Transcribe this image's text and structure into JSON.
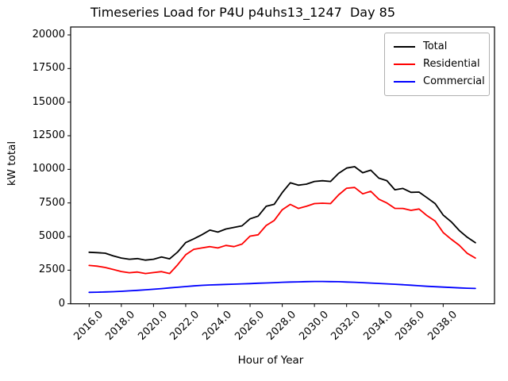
{
  "chart_data": {
    "type": "line",
    "title": "Timeseries Load for P4U p4uhs13_1247  Day 85",
    "xlabel": "Hour of Year",
    "ylabel": "kW total",
    "xlim": [
      2014.85,
      2041.19
    ],
    "ylim": [
      0,
      20590
    ],
    "grid": false,
    "legend_position": "upper right",
    "xticks": {
      "values": [
        2016,
        2018,
        2020,
        2022,
        2024,
        2026,
        2028,
        2030,
        2032,
        2034,
        2036,
        2038
      ],
      "labels": [
        "2016.0",
        "2018.0",
        "2020.0",
        "2022.0",
        "2024.0",
        "2026.0",
        "2028.0",
        "2030.0",
        "2032.0",
        "2034.0",
        "2036.0",
        "2038.0"
      ]
    },
    "yticks": {
      "values": [
        0,
        2500,
        5000,
        7500,
        10000,
        12500,
        15000,
        17500,
        20000
      ],
      "labels": [
        "0",
        "2500",
        "5000",
        "7500",
        "10000",
        "12500",
        "15000",
        "17500",
        "20000"
      ]
    },
    "x": [
      2016.0,
      2016.5,
      2017.0,
      2017.5,
      2018.0,
      2018.5,
      2019.0,
      2019.5,
      2020.0,
      2020.5,
      2021.0,
      2021.5,
      2022.0,
      2022.5,
      2023.0,
      2023.5,
      2024.0,
      2024.5,
      2025.0,
      2025.5,
      2026.0,
      2026.5,
      2027.0,
      2027.5,
      2028.0,
      2028.5,
      2029.0,
      2029.5,
      2030.0,
      2030.5,
      2031.0,
      2031.5,
      2032.0,
      2032.5,
      2033.0,
      2033.5,
      2034.0,
      2034.5,
      2035.0,
      2035.5,
      2036.0,
      2036.5,
      2037.0,
      2037.5,
      2038.0,
      2038.5,
      2039.0,
      2039.5,
      2040.0
    ],
    "series": [
      {
        "name": "Total",
        "color": "#000000",
        "values": [
          3830,
          3800,
          3760,
          3560,
          3400,
          3310,
          3360,
          3250,
          3310,
          3480,
          3340,
          3850,
          4550,
          4830,
          5130,
          5480,
          5330,
          5560,
          5680,
          5800,
          6320,
          6520,
          7250,
          7400,
          8270,
          9000,
          8820,
          8900,
          9100,
          9150,
          9100,
          9700,
          10100,
          10200,
          9750,
          9940,
          9350,
          9160,
          8480,
          8580,
          8290,
          8310,
          7880,
          7450,
          6600,
          6100,
          5450,
          4950,
          4540
        ]
      },
      {
        "name": "Residential",
        "color": "#ff0000",
        "values": [
          2850,
          2800,
          2700,
          2550,
          2400,
          2310,
          2360,
          2250,
          2320,
          2390,
          2250,
          2900,
          3650,
          4050,
          4150,
          4250,
          4150,
          4340,
          4250,
          4440,
          5030,
          5130,
          5820,
          6200,
          7000,
          7390,
          7090,
          7250,
          7450,
          7480,
          7450,
          8100,
          8600,
          8650,
          8180,
          8370,
          7780,
          7500,
          7100,
          7090,
          6950,
          7050,
          6550,
          6150,
          5300,
          4800,
          4350,
          3750,
          3400
        ]
      },
      {
        "name": "Commercial",
        "color": "#0000ff",
        "values": [
          850,
          860,
          880,
          900,
          930,
          960,
          1000,
          1040,
          1080,
          1130,
          1180,
          1230,
          1280,
          1330,
          1370,
          1400,
          1420,
          1440,
          1460,
          1480,
          1500,
          1530,
          1550,
          1570,
          1600,
          1620,
          1630,
          1650,
          1660,
          1660,
          1650,
          1640,
          1620,
          1600,
          1570,
          1540,
          1510,
          1480,
          1450,
          1420,
          1380,
          1340,
          1300,
          1270,
          1240,
          1210,
          1180,
          1160,
          1140
        ]
      }
    ]
  }
}
